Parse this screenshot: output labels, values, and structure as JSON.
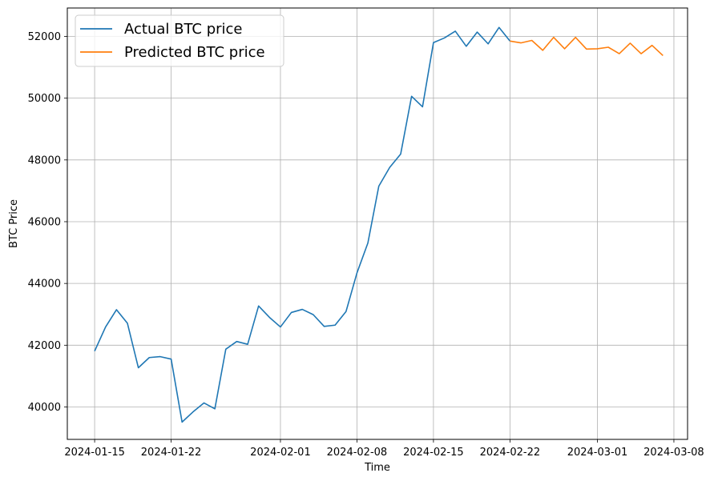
{
  "chart_data": {
    "type": "line",
    "title": "",
    "xlabel": "Time",
    "ylabel": "BTC Price",
    "xlim": [
      "2024-01-12T12:00",
      "2024-03-09T06:00"
    ],
    "ylim": [
      38950,
      52920
    ],
    "x_ticks": [
      "2024-01-15",
      "2024-01-22",
      "2024-02-01",
      "2024-02-08",
      "2024-02-15",
      "2024-02-22",
      "2024-03-01",
      "2024-03-08"
    ],
    "y_ticks": [
      40000,
      42000,
      44000,
      46000,
      48000,
      50000,
      52000
    ],
    "grid": true,
    "legend_position": "top-left",
    "series": [
      {
        "name": "Actual BTC price",
        "color": "#1f77b4",
        "x": [
          "2024-01-15",
          "2024-01-16",
          "2024-01-17",
          "2024-01-18",
          "2024-01-19",
          "2024-01-20",
          "2024-01-21",
          "2024-01-22",
          "2024-01-23",
          "2024-01-24",
          "2024-01-25",
          "2024-01-26",
          "2024-01-27",
          "2024-01-28",
          "2024-01-29",
          "2024-01-30",
          "2024-01-31",
          "2024-02-01",
          "2024-02-02",
          "2024-02-03",
          "2024-02-04",
          "2024-02-05",
          "2024-02-06",
          "2024-02-07",
          "2024-02-08",
          "2024-02-09",
          "2024-02-10",
          "2024-02-11",
          "2024-02-12",
          "2024-02-13",
          "2024-02-14",
          "2024-02-15",
          "2024-02-16",
          "2024-02-17",
          "2024-02-18",
          "2024-02-19",
          "2024-02-20",
          "2024-02-21",
          "2024-02-22"
        ],
        "y": [
          41810,
          42590,
          43150,
          42710,
          41270,
          41600,
          41630,
          41550,
          39510,
          39840,
          40130,
          39940,
          41870,
          42120,
          42030,
          43270,
          42900,
          42590,
          43060,
          43160,
          42990,
          42610,
          42650,
          43090,
          44340,
          45310,
          47150,
          47760,
          48190,
          50060,
          49720,
          51800,
          51950,
          52170,
          51680,
          52140,
          51760,
          52290,
          51850
        ]
      },
      {
        "name": "Predicted BTC price",
        "color": "#ff7f0e",
        "x": [
          "2024-02-22",
          "2024-02-23",
          "2024-02-24",
          "2024-02-25",
          "2024-02-26",
          "2024-02-27",
          "2024-02-28",
          "2024-02-29",
          "2024-03-01",
          "2024-03-02",
          "2024-03-03",
          "2024-03-04",
          "2024-03-05",
          "2024-03-06",
          "2024-03-07"
        ],
        "y": [
          51850,
          51790,
          51870,
          51550,
          51970,
          51600,
          51970,
          51590,
          51600,
          51650,
          51440,
          51780,
          51440,
          51710,
          51380
        ]
      }
    ]
  }
}
